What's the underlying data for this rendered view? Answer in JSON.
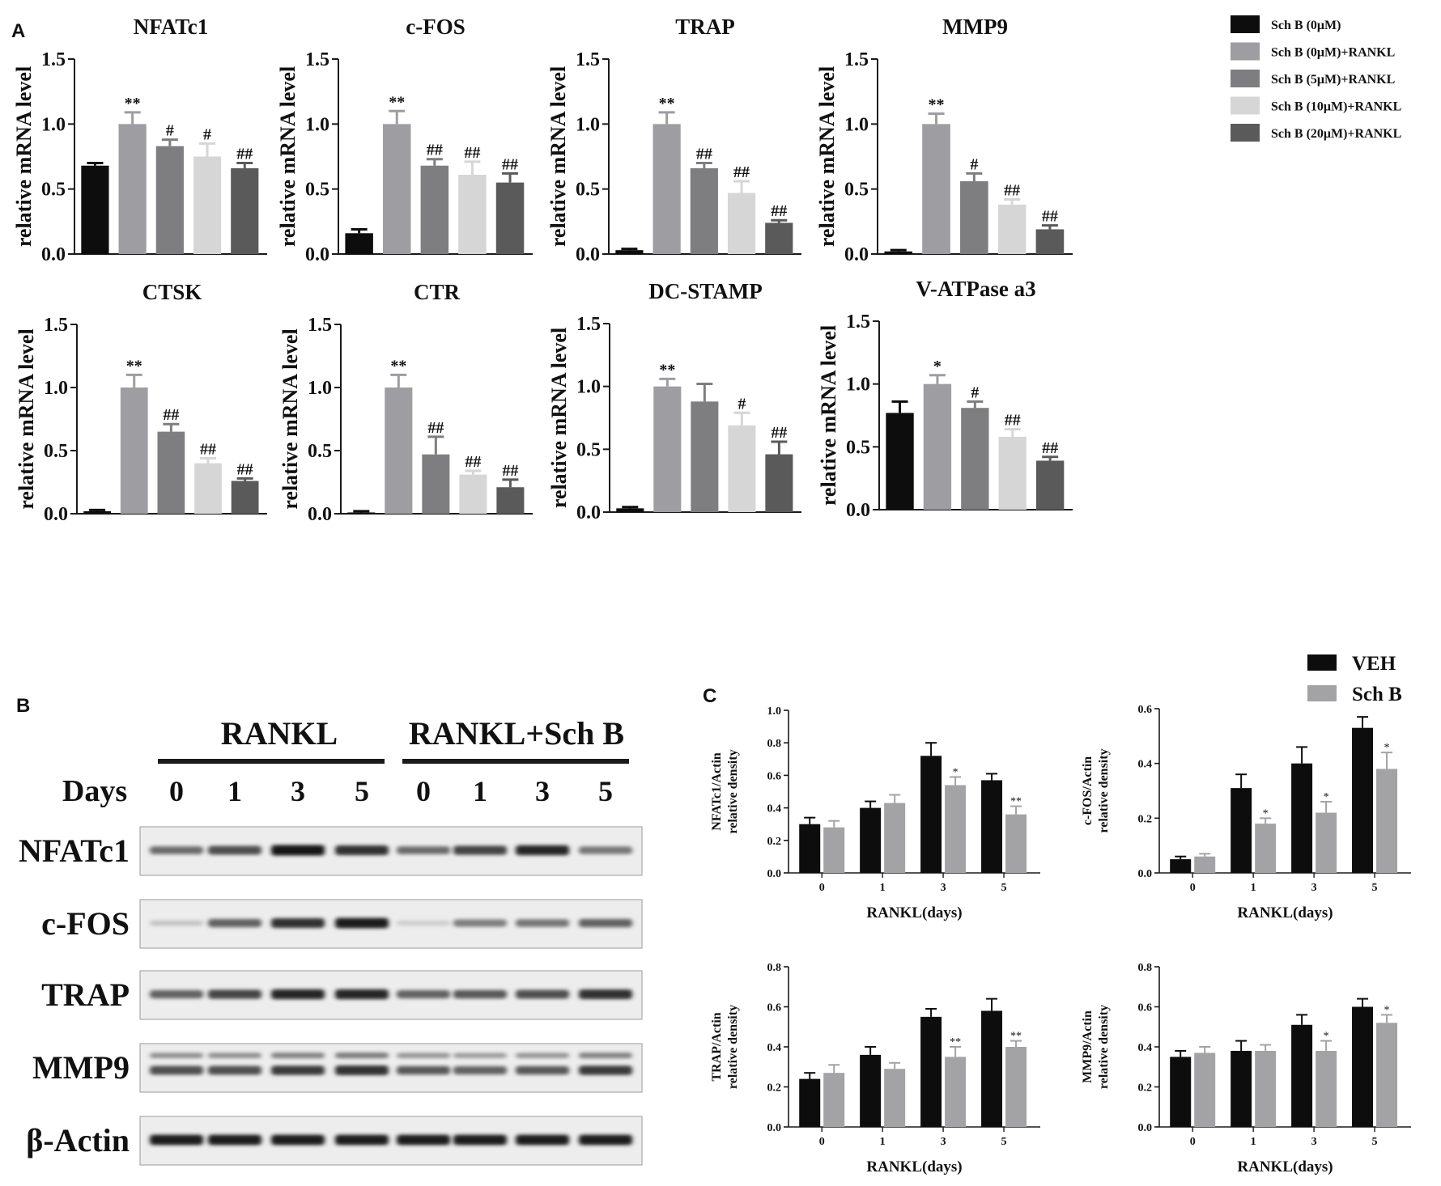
{
  "panel_a_letter": "A",
  "panel_b_letter": "B",
  "panel_c_letter": "C",
  "colors": {
    "sch_b_0": "#0d0d0d",
    "sch_b_0_rankl": "#9d9da2",
    "sch_b_5_rankl": "#7e7e80",
    "sch_b_10_rankl": "#d6d6d6",
    "sch_b_20_rankl": "#5a5a5a",
    "veh": "#0d0d0d",
    "sch_b": "#a3a3a6"
  },
  "panel_a_legend": [
    {
      "label": "Sch B (0μM)",
      "color": "#0d0d0d"
    },
    {
      "label": "Sch B (0μM)+RANKL",
      "color": "#9d9da2"
    },
    {
      "label": "Sch B (5μM)+RANKL",
      "color": "#7e7e80"
    },
    {
      "label": "Sch B (10μM)+RANKL",
      "color": "#d6d6d6"
    },
    {
      "label": "Sch B (20μM)+RANKL",
      "color": "#5a5a5a"
    }
  ],
  "panel_c_legend": [
    {
      "label": "VEH",
      "color": "#0d0d0d"
    },
    {
      "label": "Sch B",
      "color": "#a3a3a6"
    }
  ],
  "western_blot": {
    "groups": [
      "RANKL",
      "RANKL+Sch B"
    ],
    "days_label": "Days",
    "lanes": [
      "0",
      "1",
      "3",
      "5",
      "0",
      "1",
      "3",
      "5"
    ],
    "proteins": [
      {
        "name": "NFATc1",
        "intensity": [
          0.55,
          0.7,
          1.0,
          0.85,
          0.55,
          0.75,
          0.9,
          0.5
        ]
      },
      {
        "name": "c-FOS",
        "intensity": [
          0.1,
          0.6,
          0.85,
          0.95,
          0.05,
          0.45,
          0.5,
          0.6
        ]
      },
      {
        "name": "TRAP",
        "intensity": [
          0.6,
          0.75,
          0.9,
          0.9,
          0.6,
          0.65,
          0.7,
          0.85
        ]
      },
      {
        "name": "MMP9",
        "intensity": [
          0.7,
          0.7,
          0.8,
          0.85,
          0.65,
          0.6,
          0.65,
          0.8
        ]
      },
      {
        "name": "β-Actin",
        "intensity": [
          0.95,
          0.95,
          0.95,
          0.95,
          0.95,
          0.95,
          0.95,
          0.95
        ]
      }
    ]
  },
  "chart_data": [
    {
      "type": "bar",
      "panel": "A",
      "title": "NFATc1",
      "ylabel": "relative mRNA level",
      "ylim": [
        0,
        1.5
      ],
      "yticks": [
        "0.0",
        "0.5",
        "1.0",
        "1.5"
      ],
      "categories": [
        "Sch B (0μM)",
        "Sch B (0μM)+RANKL",
        "Sch B (5μM)+RANKL",
        "Sch B (10μM)+RANKL",
        "Sch B (20μM)+RANKL"
      ],
      "values": [
        0.68,
        1.0,
        0.83,
        0.75,
        0.66
      ],
      "errors": [
        0.02,
        0.09,
        0.05,
        0.1,
        0.04
      ],
      "annotations": [
        "",
        "**",
        "#",
        "#",
        "##"
      ]
    },
    {
      "type": "bar",
      "panel": "A",
      "title": "c-FOS",
      "ylabel": "relative mRNA level",
      "ylim": [
        0,
        1.5
      ],
      "yticks": [
        "0.0",
        "0.5",
        "1.0",
        "1.5"
      ],
      "categories": [
        "Sch B (0μM)",
        "Sch B (0μM)+RANKL",
        "Sch B (5μM)+RANKL",
        "Sch B (10μM)+RANKL",
        "Sch B (20μM)+RANKL"
      ],
      "values": [
        0.16,
        1.0,
        0.68,
        0.61,
        0.55
      ],
      "errors": [
        0.03,
        0.1,
        0.05,
        0.1,
        0.07
      ],
      "annotations": [
        "",
        "**",
        "##",
        "##",
        "##"
      ]
    },
    {
      "type": "bar",
      "panel": "A",
      "title": "TRAP",
      "ylabel": "relative mRNA level",
      "ylim": [
        0,
        1.5
      ],
      "yticks": [
        "0.0",
        "0.5",
        "1.0",
        "1.5"
      ],
      "categories": [
        "Sch B (0μM)",
        "Sch B (0μM)+RANKL",
        "Sch B (5μM)+RANKL",
        "Sch B (10μM)+RANKL",
        "Sch B (20μM)+RANKL"
      ],
      "values": [
        0.03,
        1.0,
        0.66,
        0.47,
        0.24
      ],
      "errors": [
        0.01,
        0.09,
        0.04,
        0.09,
        0.02
      ],
      "annotations": [
        "",
        "**",
        "##",
        "##",
        "##"
      ]
    },
    {
      "type": "bar",
      "panel": "A",
      "title": "MMP9",
      "ylabel": "relative mRNA level",
      "ylim": [
        0,
        1.5
      ],
      "yticks": [
        "0.0",
        "0.5",
        "1.0",
        "1.5"
      ],
      "categories": [
        "Sch B (0μM)",
        "Sch B (0μM)+RANKL",
        "Sch B (5μM)+RANKL",
        "Sch B (10μM)+RANKL",
        "Sch B (20μM)+RANKL"
      ],
      "values": [
        0.02,
        1.0,
        0.56,
        0.38,
        0.19
      ],
      "errors": [
        0.01,
        0.08,
        0.06,
        0.04,
        0.03
      ],
      "annotations": [
        "",
        "**",
        "#",
        "##",
        "##"
      ]
    },
    {
      "type": "bar",
      "panel": "A",
      "title": "CTSK",
      "ylabel": "relative mRNA level",
      "ylim": [
        0,
        1.5
      ],
      "yticks": [
        "0.0",
        "0.5",
        "1.0",
        "1.5"
      ],
      "categories": [
        "Sch B (0μM)",
        "Sch B (0μM)+RANKL",
        "Sch B (5μM)+RANKL",
        "Sch B (10μM)+RANKL",
        "Sch B (20μM)+RANKL"
      ],
      "values": [
        0.02,
        1.0,
        0.65,
        0.4,
        0.26
      ],
      "errors": [
        0.01,
        0.1,
        0.06,
        0.04,
        0.02
      ],
      "annotations": [
        "",
        "**",
        "##",
        "##",
        "##"
      ]
    },
    {
      "type": "bar",
      "panel": "A",
      "title": "CTR",
      "ylabel": "relative mRNA level",
      "ylim": [
        0,
        1.5
      ],
      "yticks": [
        "0.0",
        "0.5",
        "1.0",
        "1.5"
      ],
      "categories": [
        "Sch B (0μM)",
        "Sch B (0μM)+RANKL",
        "Sch B (5μM)+RANKL",
        "Sch B (10μM)+RANKL",
        "Sch B (20μM)+RANKL"
      ],
      "values": [
        0.01,
        1.0,
        0.47,
        0.31,
        0.21
      ],
      "errors": [
        0.01,
        0.1,
        0.14,
        0.03,
        0.06
      ],
      "annotations": [
        "",
        "**",
        "##",
        "##",
        "##"
      ]
    },
    {
      "type": "bar",
      "panel": "A",
      "title": "DC-STAMP",
      "ylabel": "relative mRNA level",
      "ylim": [
        0,
        1.5
      ],
      "yticks": [
        "0.0",
        "0.5",
        "1.0",
        "1.5"
      ],
      "categories": [
        "Sch B (0μM)",
        "Sch B (0μM)+RANKL",
        "Sch B (5μM)+RANKL",
        "Sch B (10μM)+RANKL",
        "Sch B (20μM)+RANKL"
      ],
      "values": [
        0.03,
        1.0,
        0.88,
        0.69,
        0.46
      ],
      "errors": [
        0.01,
        0.06,
        0.14,
        0.1,
        0.1
      ],
      "annotations": [
        "",
        "**",
        "",
        "#",
        "##"
      ]
    },
    {
      "type": "bar",
      "panel": "A",
      "title": "V-ATPase a3",
      "ylabel": "relative mRNA level",
      "ylim": [
        0,
        1.5
      ],
      "yticks": [
        "0.0",
        "0.5",
        "1.0",
        "1.5"
      ],
      "categories": [
        "Sch B (0μM)",
        "Sch B (0μM)+RANKL",
        "Sch B (5μM)+RANKL",
        "Sch B (10μM)+RANKL",
        "Sch B (20μM)+RANKL"
      ],
      "values": [
        0.77,
        1.0,
        0.81,
        0.58,
        0.39
      ],
      "errors": [
        0.09,
        0.07,
        0.05,
        0.06,
        0.03
      ],
      "annotations": [
        "",
        "*",
        "#",
        "##",
        "##"
      ]
    },
    {
      "type": "bar",
      "panel": "C",
      "ylabel": "NFATc1/Actin\nrelative density",
      "xlabel": "RANKL(days)",
      "ylim": [
        0,
        1.0
      ],
      "yticks": [
        "0.0",
        "0.2",
        "0.4",
        "0.6",
        "0.8",
        "1.0"
      ],
      "categories": [
        "0",
        "1",
        "3",
        "5"
      ],
      "series": [
        {
          "name": "VEH",
          "values": [
            0.3,
            0.4,
            0.72,
            0.57
          ],
          "errors": [
            0.04,
            0.04,
            0.08,
            0.04
          ],
          "annotations": [
            "",
            "",
            "",
            ""
          ]
        },
        {
          "name": "Sch B",
          "values": [
            0.28,
            0.43,
            0.54,
            0.36
          ],
          "errors": [
            0.04,
            0.05,
            0.05,
            0.05
          ],
          "annotations": [
            "",
            "",
            "*",
            "**"
          ]
        }
      ]
    },
    {
      "type": "bar",
      "panel": "C",
      "ylabel": "c-FOS/Actin\nrelative density",
      "xlabel": "RANKL(days)",
      "ylim": [
        0,
        0.6
      ],
      "yticks": [
        "0.0",
        "0.2",
        "0.4",
        "0.6"
      ],
      "categories": [
        "0",
        "1",
        "3",
        "5"
      ],
      "series": [
        {
          "name": "VEH",
          "values": [
            0.05,
            0.31,
            0.4,
            0.53
          ],
          "errors": [
            0.01,
            0.05,
            0.06,
            0.04
          ],
          "annotations": [
            "",
            "",
            "",
            ""
          ]
        },
        {
          "name": "Sch B",
          "values": [
            0.06,
            0.18,
            0.22,
            0.38
          ],
          "errors": [
            0.01,
            0.02,
            0.04,
            0.06
          ],
          "annotations": [
            "",
            "*",
            "*",
            "*"
          ]
        }
      ]
    },
    {
      "type": "bar",
      "panel": "C",
      "ylabel": "TRAP/Actin\nrelative density",
      "xlabel": "RANKL(days)",
      "ylim": [
        0,
        0.8
      ],
      "yticks": [
        "0.0",
        "0.2",
        "0.4",
        "0.6",
        "0.8"
      ],
      "categories": [
        "0",
        "1",
        "3",
        "5"
      ],
      "series": [
        {
          "name": "VEH",
          "values": [
            0.24,
            0.36,
            0.55,
            0.58
          ],
          "errors": [
            0.03,
            0.04,
            0.04,
            0.06
          ],
          "annotations": [
            "",
            "",
            "",
            ""
          ]
        },
        {
          "name": "Sch B",
          "values": [
            0.27,
            0.29,
            0.35,
            0.4
          ],
          "errors": [
            0.04,
            0.03,
            0.05,
            0.03
          ],
          "annotations": [
            "",
            "",
            "**",
            "**"
          ]
        }
      ]
    },
    {
      "type": "bar",
      "panel": "C",
      "ylabel": "MMP9/Actin\nrelative density",
      "xlabel": "RANKL(days)",
      "ylim": [
        0,
        0.8
      ],
      "yticks": [
        "0.0",
        "0.2",
        "0.4",
        "0.6",
        "0.8"
      ],
      "categories": [
        "0",
        "1",
        "3",
        "5"
      ],
      "series": [
        {
          "name": "VEH",
          "values": [
            0.35,
            0.38,
            0.51,
            0.6
          ],
          "errors": [
            0.03,
            0.05,
            0.05,
            0.04
          ],
          "annotations": [
            "",
            "",
            "",
            ""
          ]
        },
        {
          "name": "Sch B",
          "values": [
            0.37,
            0.38,
            0.38,
            0.52
          ],
          "errors": [
            0.03,
            0.03,
            0.05,
            0.04
          ],
          "annotations": [
            "",
            "",
            "*",
            "*"
          ]
        }
      ]
    }
  ]
}
